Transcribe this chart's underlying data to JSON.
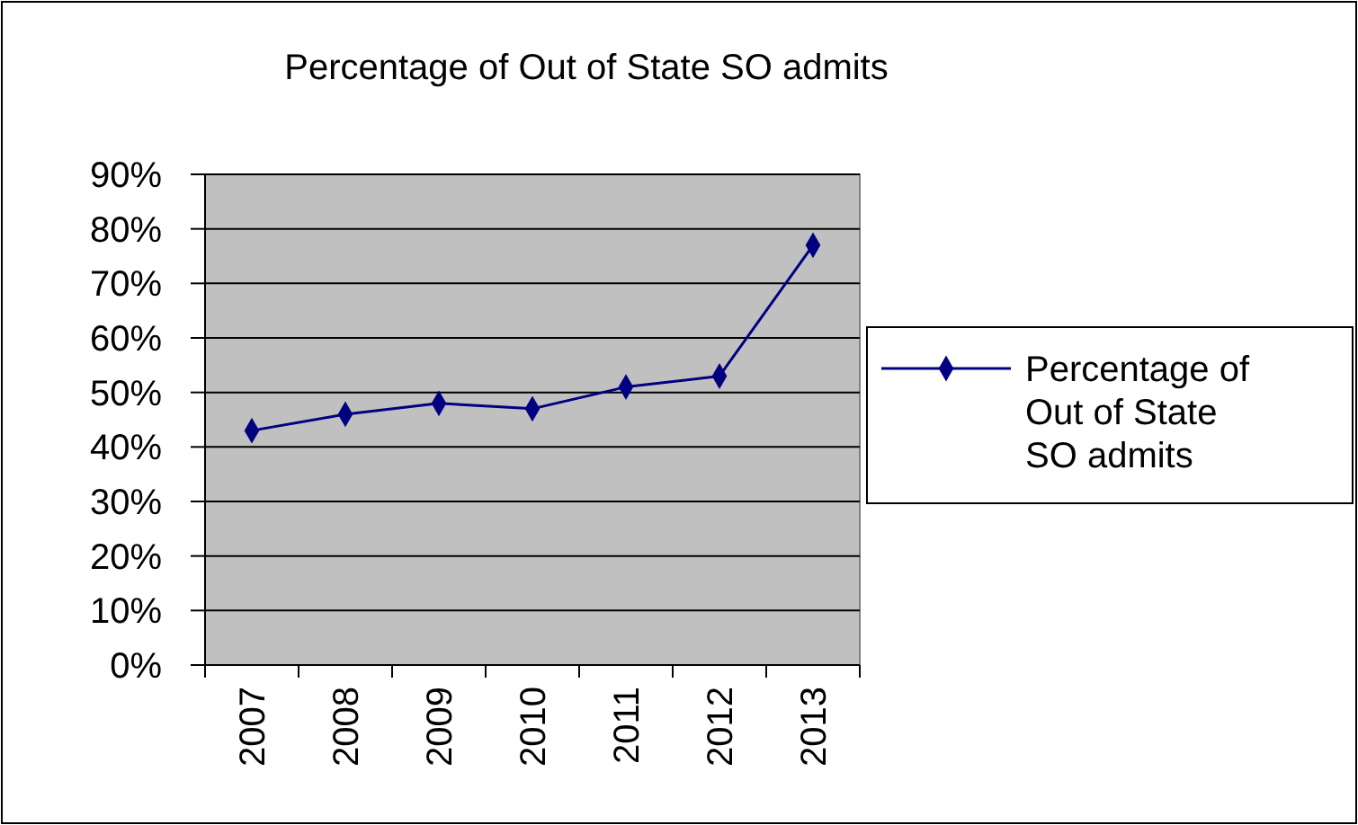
{
  "chart_data": {
    "type": "line",
    "title": "Percentage of Out of State SO admits",
    "categories": [
      "2007",
      "2008",
      "2009",
      "2010",
      "2011",
      "2012",
      "2013"
    ],
    "series": [
      {
        "name": "Percentage of Out of State SO admits",
        "color": "#000080",
        "values": [
          43,
          46,
          48,
          47,
          51,
          53,
          77
        ]
      }
    ],
    "ylim": [
      0,
      90
    ],
    "yticks": [
      {
        "value": 0,
        "label": "0%"
      },
      {
        "value": 10,
        "label": "10%"
      },
      {
        "value": 20,
        "label": "20%"
      },
      {
        "value": 30,
        "label": "30%"
      },
      {
        "value": 40,
        "label": "40%"
      },
      {
        "value": 50,
        "label": "50%"
      },
      {
        "value": 60,
        "label": "60%"
      },
      {
        "value": 70,
        "label": "70%"
      },
      {
        "value": 80,
        "label": "80%"
      },
      {
        "value": 90,
        "label": "90%"
      }
    ],
    "grid": "y",
    "legend": "right",
    "marker": "diamond",
    "line_style": "solid"
  }
}
